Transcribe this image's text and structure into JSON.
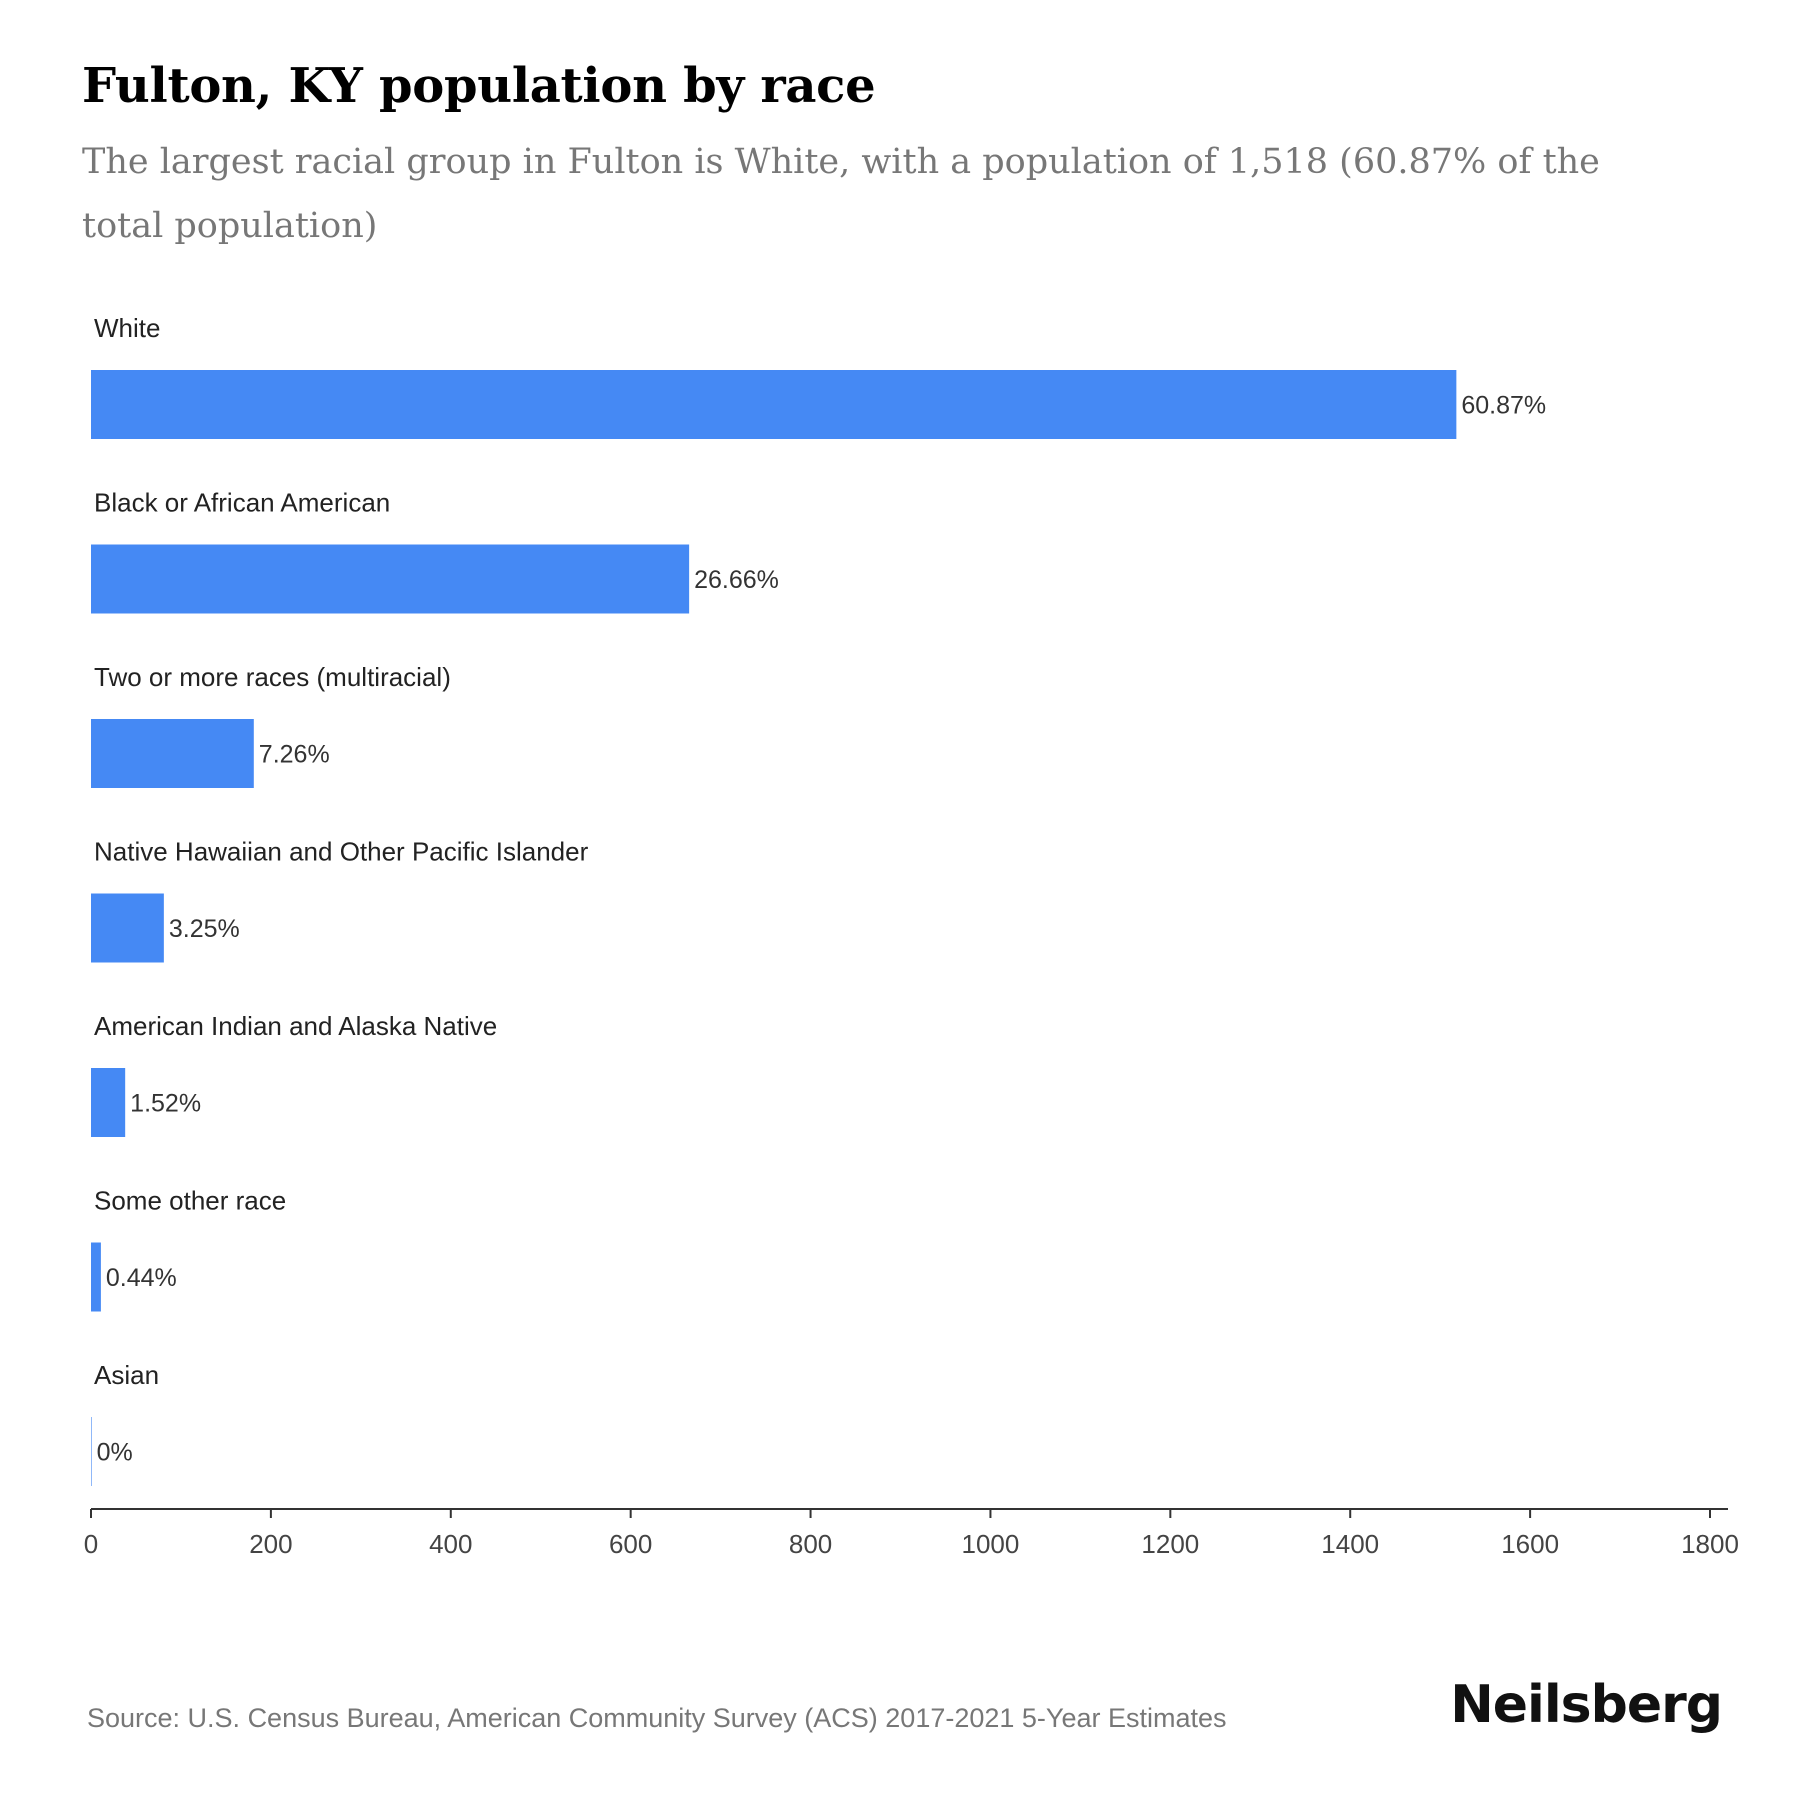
{
  "title": "Fulton, KY population by race",
  "subtitle": "The largest racial group in Fulton is White, with a population of 1,518 (60.87% of the total population)",
  "source": "Source: U.S. Census Bureau, American Community Survey (ACS) 2017-2021 5-Year Estimates",
  "brand": "Neilsberg",
  "colors": {
    "bar": "#4589F4",
    "axis": "#333333"
  },
  "chart_data": {
    "type": "bar",
    "orientation": "horizontal",
    "categories": [
      "White",
      "Black or African American",
      "Two or more races (multiracial)",
      "Native Hawaiian and Other Pacific Islander",
      "American Indian and Alaska Native",
      "Some other race",
      "Asian"
    ],
    "values": [
      1518,
      665,
      181,
      81,
      38,
      11,
      0
    ],
    "value_labels": [
      "60.87%",
      "26.66%",
      "7.26%",
      "3.25%",
      "1.52%",
      "0.44%",
      "0%"
    ],
    "xlim": [
      0,
      1800
    ],
    "xticks": [
      0,
      200,
      400,
      600,
      800,
      1000,
      1200,
      1400,
      1600,
      1800
    ],
    "grid": false,
    "legend": "none"
  }
}
